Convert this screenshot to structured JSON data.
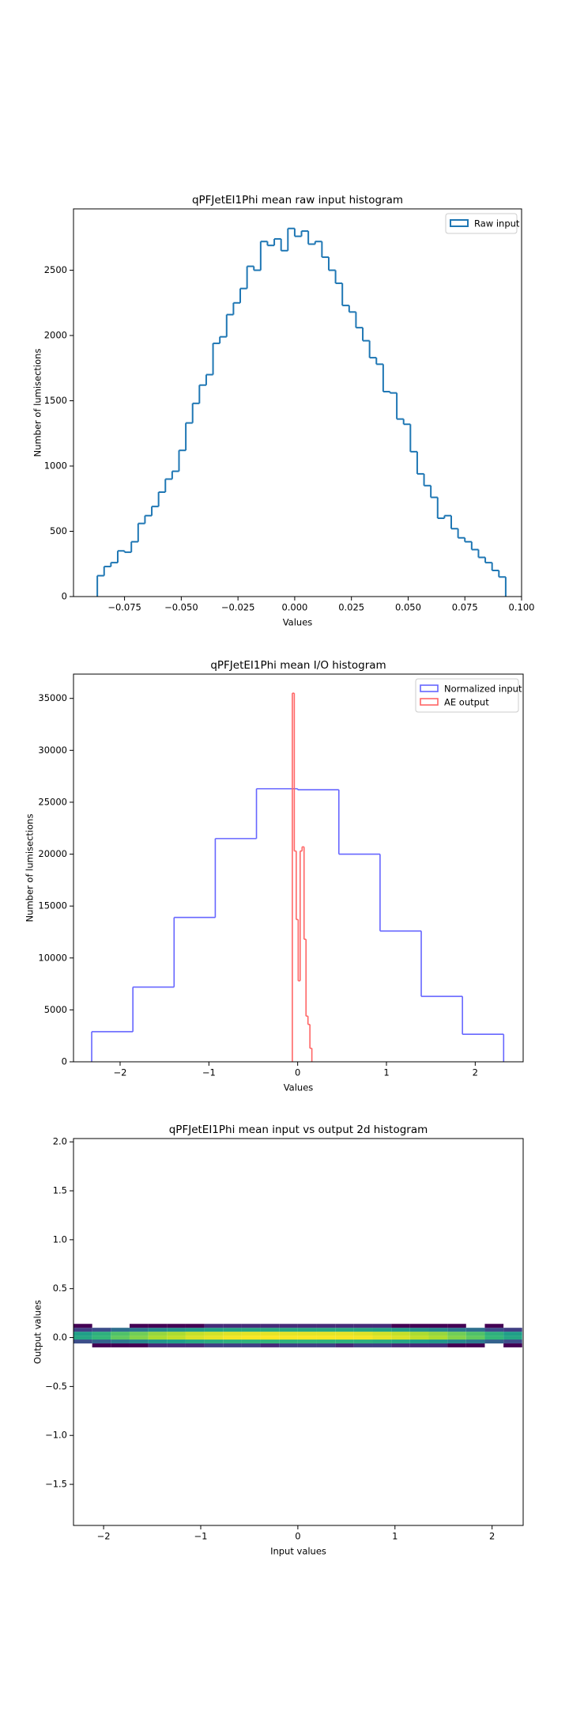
{
  "chart_data": [
    {
      "type": "histogram",
      "histtype": "step",
      "title": "qPFJetEI1Phi mean raw input histogram",
      "xlabel": "Values",
      "ylabel": "Number of lumisections",
      "legend": "upper right",
      "xlim": [
        -0.0975,
        0.1
      ],
      "ylim": [
        0,
        2970
      ],
      "xticks": [
        {
          "value": -0.075,
          "label": "−0.075"
        },
        {
          "value": -0.05,
          "label": "−0.050"
        },
        {
          "value": -0.025,
          "label": "−0.025"
        },
        {
          "value": 0,
          "label": "0.000"
        },
        {
          "value": 0.025,
          "label": "0.025"
        },
        {
          "value": 0.05,
          "label": "0.050"
        },
        {
          "value": 0.075,
          "label": "0.075"
        },
        {
          "value": 0.1,
          "label": "0.100"
        }
      ],
      "yticks": [
        0,
        500,
        1000,
        1500,
        2000,
        2500
      ],
      "series": [
        {
          "name": "Raw input",
          "color": "#1f77b4",
          "bins": [
            -0.087,
            -0.084,
            -0.081,
            -0.078,
            -0.075,
            -0.072,
            -0.069,
            -0.066,
            -0.063,
            -0.06,
            -0.057,
            -0.054,
            -0.051,
            -0.048,
            -0.045,
            -0.042,
            -0.039,
            -0.036,
            -0.033,
            -0.03,
            -0.027,
            -0.024,
            -0.021,
            -0.018,
            -0.015,
            -0.012,
            -0.009,
            -0.006,
            -0.003,
            0,
            0.003,
            0.006,
            0.009,
            0.012,
            0.015,
            0.018,
            0.021,
            0.024,
            0.027,
            0.03,
            0.033,
            0.036,
            0.039,
            0.042,
            0.045,
            0.048,
            0.051,
            0.054,
            0.057,
            0.06,
            0.063,
            0.066,
            0.069,
            0.072,
            0.075,
            0.078,
            0.081,
            0.084,
            0.087,
            0.09,
            0.093
          ],
          "values": [
            160,
            230,
            260,
            350,
            340,
            420,
            560,
            620,
            690,
            800,
            900,
            960,
            1120,
            1330,
            1480,
            1620,
            1700,
            1940,
            1990,
            2160,
            2250,
            2360,
            2530,
            2500,
            2720,
            2690,
            2740,
            2650,
            2820,
            2760,
            2800,
            2700,
            2720,
            2600,
            2500,
            2400,
            2230,
            2180,
            2060,
            1960,
            1830,
            1780,
            1570,
            1560,
            1360,
            1320,
            1110,
            940,
            850,
            760,
            600,
            620,
            520,
            450,
            420,
            360,
            300,
            260,
            200,
            150
          ]
        }
      ]
    },
    {
      "type": "histogram",
      "histtype": "step",
      "title": "qPFJetEI1Phi mean I/O histogram",
      "xlabel": "Values",
      "ylabel": "Number of lumisections",
      "legend": "upper right",
      "xlim": [
        -2.525,
        2.54
      ],
      "ylim": [
        0,
        37340
      ],
      "xticks": [
        {
          "value": -2,
          "label": "−2"
        },
        {
          "value": -1,
          "label": "−1"
        },
        0,
        1,
        2
      ],
      "yticks": [
        0,
        5000,
        10000,
        15000,
        20000,
        25000,
        30000,
        35000
      ],
      "series": [
        {
          "name": "Normalized input",
          "color": "#6666ff",
          "bins": [
            -2.32,
            -1.856,
            -1.392,
            -0.928,
            -0.464,
            0,
            0.464,
            0.928,
            1.392,
            1.856,
            2.32
          ],
          "values": [
            2900,
            7200,
            13900,
            21500,
            26300,
            26200,
            20000,
            12600,
            6300,
            2650
          ]
        },
        {
          "name": "AE output",
          "color": "#ff6666",
          "bins": [
            -0.06,
            -0.038,
            -0.016,
            0.006,
            0.028,
            0.05,
            0.072,
            0.094,
            0.116,
            0.138,
            0.16
          ],
          "values": [
            35500,
            20300,
            13700,
            7800,
            20300,
            20700,
            11800,
            4400,
            3600,
            1300
          ]
        }
      ]
    },
    {
      "type": "hist2d",
      "title": "qPFJetEI1Phi mean input vs output 2d histogram",
      "xlabel": "Input values",
      "ylabel": "Output values",
      "cmap": "viridis",
      "log_color": true,
      "xlim": [
        -2.31,
        2.32
      ],
      "ylim": [
        -1.92,
        2.034
      ],
      "xticks": [
        {
          "value": -2,
          "label": "−2"
        },
        {
          "value": -1,
          "label": "−1"
        },
        0,
        1,
        2
      ],
      "yticks": [
        {
          "value": -1.5,
          "label": "−1.5"
        },
        {
          "value": -1,
          "label": "−1.0"
        },
        {
          "value": -0.5,
          "label": "−0.5"
        },
        {
          "value": 0,
          "label": "0.0"
        },
        {
          "value": 0.5,
          "label": "0.5"
        },
        {
          "value": 1,
          "label": "1.0"
        },
        {
          "value": 1.5,
          "label": "1.5"
        },
        {
          "value": 2,
          "label": "2.0"
        }
      ],
      "xbins": [
        -2.31,
        -2.1175,
        -1.925,
        -1.7325,
        -1.54,
        -1.3475,
        -1.155,
        -0.9625,
        -0.77,
        -0.5775,
        -0.385,
        -0.1925,
        0,
        0.1925,
        0.385,
        0.5775,
        0.77,
        0.9625,
        1.155,
        1.3475,
        1.54,
        1.7325,
        1.925,
        2.1175,
        2.31
      ],
      "ybins": [
        -0.1,
        -0.06,
        -0.02,
        0.02,
        0.06,
        0.1,
        0.14
      ],
      "counts": [
        [
          0,
          1,
          1,
          1,
          2,
          2,
          2,
          3,
          3,
          3,
          2,
          3,
          3,
          3,
          2,
          3,
          3,
          2,
          2,
          2,
          1,
          1,
          0,
          1
        ],
        [
          4,
          6,
          10,
          14,
          20,
          24,
          30,
          34,
          38,
          40,
          42,
          40,
          41,
          40,
          39,
          38,
          34,
          30,
          24,
          20,
          14,
          10,
          6,
          4
        ],
        [
          30,
          45,
          75,
          105,
          150,
          180,
          225,
          255,
          285,
          300,
          310,
          300,
          305,
          300,
          295,
          285,
          255,
          225,
          180,
          150,
          105,
          75,
          45,
          30
        ],
        [
          25,
          38,
          62,
          88,
          125,
          150,
          188,
          212,
          238,
          250,
          255,
          250,
          248,
          250,
          252,
          238,
          212,
          188,
          150,
          125,
          88,
          62,
          38,
          25
        ],
        [
          3,
          4,
          8,
          10,
          15,
          18,
          22,
          26,
          28,
          30,
          31,
          30,
          29,
          30,
          30,
          28,
          26,
          22,
          18,
          15,
          10,
          8,
          4,
          3
        ],
        [
          1,
          0,
          0,
          1,
          1,
          1,
          1,
          2,
          2,
          2,
          2,
          2,
          2,
          2,
          2,
          2,
          2,
          1,
          1,
          1,
          1,
          0,
          1,
          0
        ]
      ]
    }
  ]
}
